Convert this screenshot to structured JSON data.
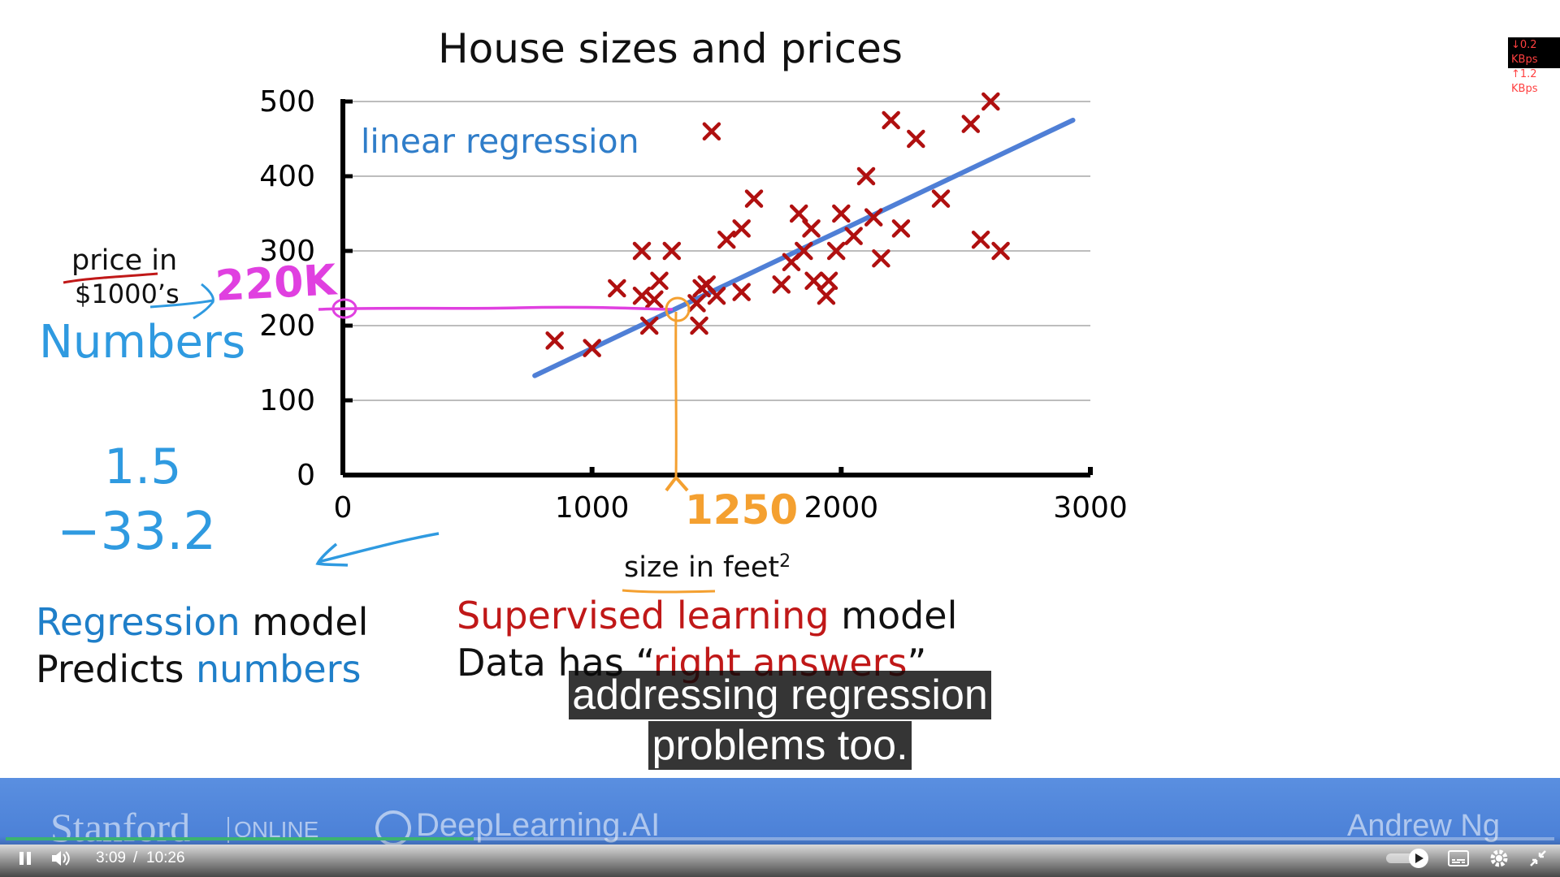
{
  "slide": {
    "title": "House sizes and prices",
    "chart_annotation": "linear regression",
    "ylabel_line1": "price in",
    "ylabel_line2": "$1000’s",
    "xlabel": "size in feet",
    "xlabel_sup": "2",
    "handwritten": {
      "price_value": "220K",
      "size_value": "1250",
      "numbers_word": "Numbers",
      "example_number_1": "1.5",
      "example_number_2": "−33.2"
    },
    "left_block": {
      "line1_colored": "Regression",
      "line1_rest": " model",
      "line2_plain": "Predicts ",
      "line2_colored": "numbers"
    },
    "right_block": {
      "line1_colored": "Supervised learning",
      "line1_rest": " model",
      "line2_plain": "Data has “",
      "line2_colored": "right answers",
      "line2_end": "”"
    }
  },
  "chart_data": {
    "type": "scatter",
    "title": "House sizes and prices",
    "xlabel": "size in feet²",
    "ylabel": "price in $1000’s",
    "xlim": [
      0,
      3000
    ],
    "ylim": [
      0,
      500
    ],
    "x_ticks": [
      "0",
      "1000",
      "2000",
      "3000"
    ],
    "y_ticks": [
      "0",
      "100",
      "200",
      "300",
      "400",
      "500"
    ],
    "grid": "horizontal",
    "points": [
      [
        850,
        180
      ],
      [
        1000,
        170
      ],
      [
        1100,
        250
      ],
      [
        1200,
        300
      ],
      [
        1200,
        240
      ],
      [
        1230,
        200
      ],
      [
        1250,
        235
      ],
      [
        1270,
        260
      ],
      [
        1320,
        300
      ],
      [
        1420,
        230
      ],
      [
        1430,
        200
      ],
      [
        1440,
        250
      ],
      [
        1460,
        255
      ],
      [
        1480,
        460
      ],
      [
        1500,
        240
      ],
      [
        1540,
        315
      ],
      [
        1600,
        330
      ],
      [
        1600,
        245
      ],
      [
        1650,
        370
      ],
      [
        1760,
        255
      ],
      [
        1800,
        285
      ],
      [
        1830,
        350
      ],
      [
        1850,
        300
      ],
      [
        1880,
        330
      ],
      [
        1890,
        260
      ],
      [
        1940,
        240
      ],
      [
        1950,
        260
      ],
      [
        1980,
        300
      ],
      [
        2000,
        350
      ],
      [
        2050,
        320
      ],
      [
        2100,
        400
      ],
      [
        2130,
        345
      ],
      [
        2160,
        290
      ],
      [
        2200,
        475
      ],
      [
        2240,
        330
      ],
      [
        2300,
        450
      ],
      [
        2400,
        370
      ],
      [
        2520,
        470
      ],
      [
        2560,
        315
      ],
      [
        2600,
        500
      ],
      [
        2640,
        300
      ]
    ],
    "regression_line": {
      "x": [
        770,
        2930
      ],
      "y": [
        133,
        475
      ]
    },
    "prediction": {
      "x": 1250,
      "y": 220
    },
    "colors": {
      "points": "#b01010",
      "line": "#4f7fd6",
      "title": "#111111",
      "pink": "#e040e0",
      "orange": "#f4a030",
      "hand_blue": "#2f9ae0"
    }
  },
  "captions": [
    "addressing regression",
    "problems too."
  ],
  "network": {
    "down": "↓0.2 KBps",
    "up": "↑1.2 KBps"
  },
  "banner": {
    "left_brand": "Stanford",
    "left_sub": "ONLINE",
    "middle_brand": "DeepLearning.AI",
    "right_name": "Andrew Ng"
  },
  "player": {
    "current_time": "3:09",
    "separator": "/",
    "duration": "10:26",
    "progress": 0.302,
    "icons": [
      "pause-icon",
      "volume-icon",
      "autoplay-toggle",
      "subtitles-icon",
      "settings-icon",
      "exit-fullscreen-icon"
    ]
  }
}
